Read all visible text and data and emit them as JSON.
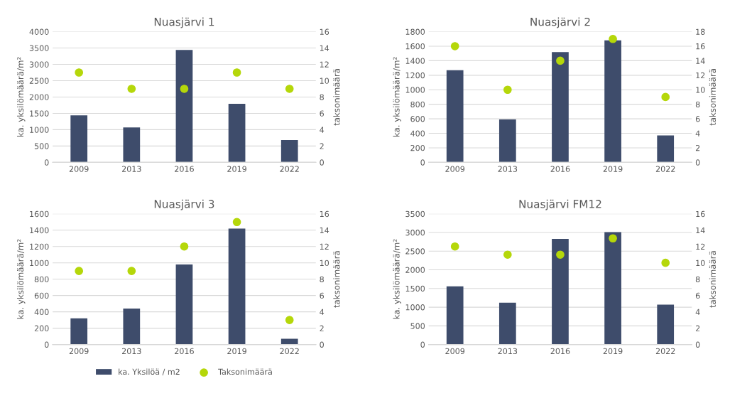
{
  "chart_data": [
    {
      "type": "bar",
      "title": "Nuasjärvi 1",
      "ylabel": "ka. yksilömäärä/m²",
      "y2label": "taksonimäärä",
      "categories": [
        "2009",
        "2013",
        "2016",
        "2019",
        "2022"
      ],
      "series": [
        {
          "color": "#3e4c6b",
          "values": [
            1440,
            1070,
            3440,
            1790,
            680
          ]
        },
        {
          "type": "scatter",
          "axis": "y2",
          "color": "#b5d70a",
          "values": [
            11,
            9,
            9,
            11,
            9
          ]
        }
      ],
      "ylim": [
        0,
        4000
      ],
      "yticks": [
        0,
        500,
        1000,
        1500,
        2000,
        2500,
        3000,
        3500,
        4000
      ],
      "y2lim": [
        0,
        16
      ],
      "y2ticks": [
        0,
        2,
        4,
        6,
        8,
        10,
        12,
        14,
        16
      ],
      "grid": "y",
      "marker": "circle"
    },
    {
      "type": "bar",
      "title": "Nuasjärvi 2",
      "ylabel": "ka. yksilömäärä/m²",
      "y2label": "taksonimäärä",
      "categories": [
        "2009",
        "2013",
        "2016",
        "2019",
        "2022"
      ],
      "series": [
        {
          "color": "#3e4c6b",
          "values": [
            1270,
            590,
            1520,
            1680,
            370
          ]
        },
        {
          "type": "scatter",
          "axis": "y2",
          "color": "#b5d70a",
          "values": [
            16,
            10,
            14,
            17,
            9
          ]
        }
      ],
      "ylim": [
        0,
        1800
      ],
      "yticks": [
        0,
        200,
        400,
        600,
        800,
        1000,
        1200,
        1400,
        1600,
        1800
      ],
      "y2lim": [
        0,
        18
      ],
      "y2ticks": [
        0,
        2,
        4,
        6,
        8,
        10,
        12,
        14,
        16,
        18
      ],
      "grid": "y",
      "marker": "circle"
    },
    {
      "type": "bar",
      "title": "Nuasjärvi 3",
      "ylabel": "ka. yksilömäärä/m²",
      "y2label": "taksonimäärä",
      "categories": [
        "2009",
        "2013",
        "2016",
        "2019",
        "2022"
      ],
      "series": [
        {
          "name": "ka. Yksilöä / m2",
          "color": "#3e4c6b",
          "values": [
            320,
            440,
            980,
            1420,
            70
          ]
        },
        {
          "type": "scatter",
          "name": "Taksonimäärä",
          "axis": "y2",
          "color": "#b5d70a",
          "values": [
            9,
            9,
            12,
            15,
            3
          ]
        }
      ],
      "ylim": [
        0,
        1600
      ],
      "yticks": [
        0,
        200,
        400,
        600,
        800,
        1000,
        1200,
        1400,
        1600
      ],
      "y2lim": [
        0,
        16
      ],
      "y2ticks": [
        0,
        2,
        4,
        6,
        8,
        10,
        12,
        14,
        16
      ],
      "grid": "y",
      "marker": "circle",
      "legend": "bottom"
    },
    {
      "type": "bar",
      "title": "Nuasjärvi FM12",
      "ylabel": "ka. yksilömäärä/m²",
      "y2label": "taksonimäärä",
      "categories": [
        "2009",
        "2013",
        "2016",
        "2019",
        "2022"
      ],
      "series": [
        {
          "color": "#3e4c6b",
          "values": [
            1560,
            1120,
            2830,
            3010,
            1070
          ]
        },
        {
          "type": "scatter",
          "axis": "y2",
          "color": "#b5d70a",
          "values": [
            12,
            11,
            11,
            13,
            10
          ]
        }
      ],
      "ylim": [
        0,
        3500
      ],
      "yticks": [
        0,
        500,
        1000,
        1500,
        2000,
        2500,
        3000,
        3500
      ],
      "y2lim": [
        0,
        16
      ],
      "y2ticks": [
        0,
        2,
        4,
        6,
        8,
        10,
        12,
        14,
        16
      ],
      "grid": "y",
      "marker": "circle"
    }
  ]
}
